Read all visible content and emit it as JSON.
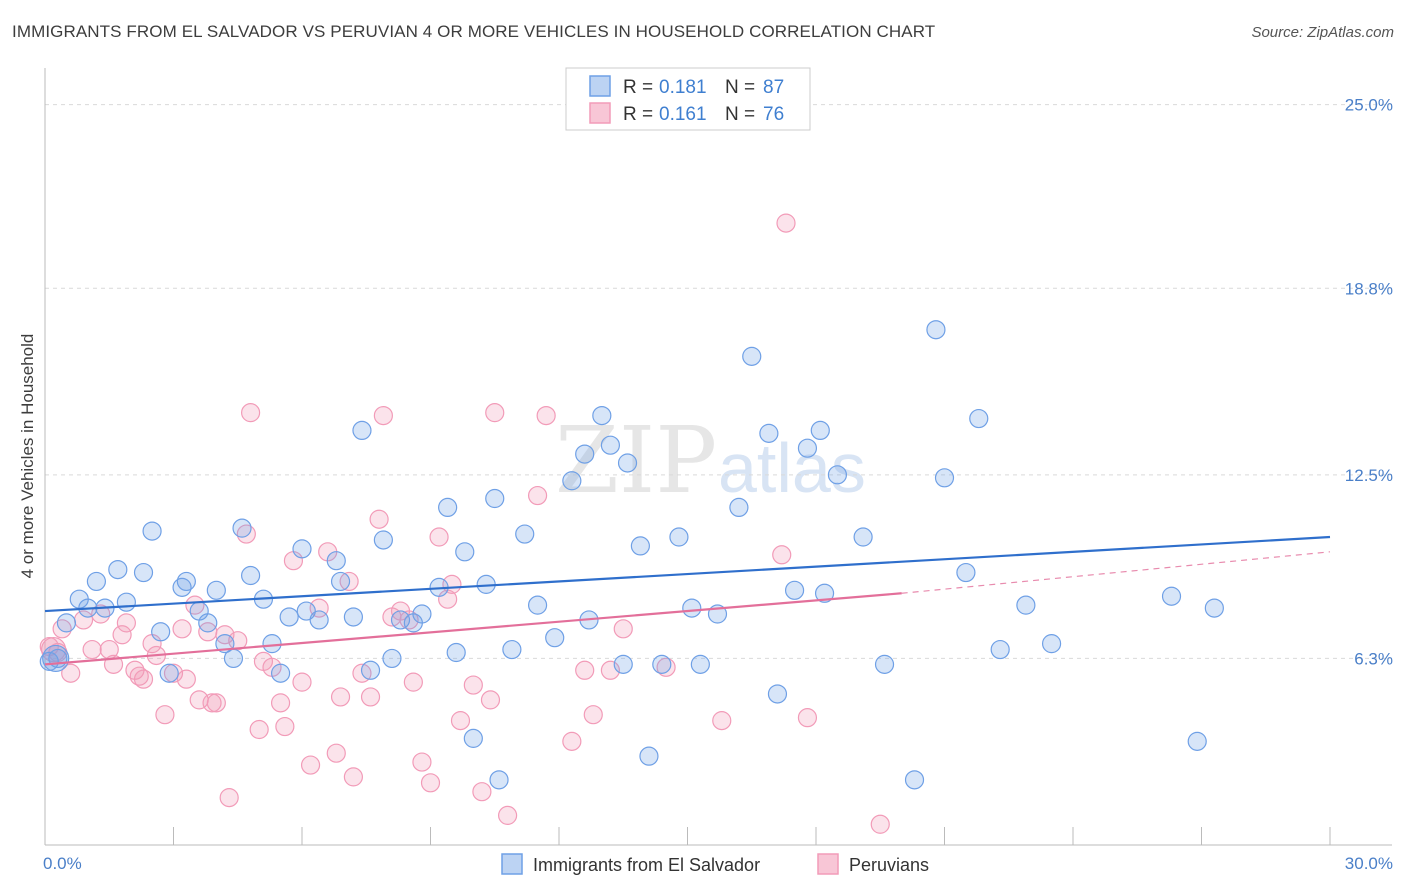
{
  "header": {
    "title": "IMMIGRANTS FROM EL SALVADOR VS PERUVIAN 4 OR MORE VEHICLES IN HOUSEHOLD CORRELATION CHART",
    "source": "Source: ZipAtlas.com"
  },
  "watermark": {
    "zip": "ZIP",
    "atlas": "atlas"
  },
  "legend_top": {
    "rows": [
      {
        "r_label": "R =",
        "r_value": "0.181",
        "n_label": "N =",
        "n_value": "87"
      },
      {
        "r_label": "R =",
        "r_value": "0.161",
        "n_label": "N =",
        "n_value": "76"
      }
    ]
  },
  "chart_data": {
    "type": "scatter",
    "title": "IMMIGRANTS FROM EL SALVADOR VS PERUVIAN 4 OR MORE VEHICLES IN HOUSEHOLD CORRELATION CHART",
    "ylabel": "4 or more Vehicles in Household",
    "xlabel": "",
    "xlim": [
      0,
      30
    ],
    "ylim": [
      0,
      25
    ],
    "x_tick_labels": [
      "0.0%",
      "30.0%"
    ],
    "y_ticks": [
      6.3,
      12.5,
      18.8,
      25.0
    ],
    "y_tick_labels": [
      "6.3%",
      "12.5%",
      "18.8%",
      "25.0%"
    ],
    "grid": true,
    "legend_position": "bottom",
    "colors": {
      "el_salvador": "#6fa0e6",
      "peruvians": "#f29bb8",
      "el_salvador_line": "#2f6fcc",
      "peruvians_line": "#e36f9a"
    },
    "series": [
      {
        "name": "Immigrants from El Salvador",
        "r": 0.181,
        "n": 87,
        "trend": {
          "x0": 0,
          "y0": 7.9,
          "x1": 30,
          "y1": 10.4
        },
        "points": [
          [
            0.1,
            6.2
          ],
          [
            0.3,
            6.3
          ],
          [
            0.5,
            7.5
          ],
          [
            0.8,
            8.3
          ],
          [
            1.0,
            8.0
          ],
          [
            1.2,
            8.9
          ],
          [
            1.4,
            8.0
          ],
          [
            1.7,
            9.3
          ],
          [
            1.9,
            8.2
          ],
          [
            2.3,
            9.2
          ],
          [
            2.5,
            10.6
          ],
          [
            2.7,
            7.2
          ],
          [
            2.9,
            5.8
          ],
          [
            3.2,
            8.7
          ],
          [
            3.3,
            8.9
          ],
          [
            3.6,
            7.9
          ],
          [
            3.8,
            7.5
          ],
          [
            4.0,
            8.6
          ],
          [
            4.2,
            6.8
          ],
          [
            4.4,
            6.3
          ],
          [
            4.6,
            10.7
          ],
          [
            4.8,
            9.1
          ],
          [
            5.1,
            8.3
          ],
          [
            5.3,
            6.8
          ],
          [
            5.5,
            5.8
          ],
          [
            5.7,
            7.7
          ],
          [
            6.0,
            10.0
          ],
          [
            6.1,
            7.9
          ],
          [
            6.4,
            7.6
          ],
          [
            6.8,
            9.6
          ],
          [
            6.9,
            8.9
          ],
          [
            7.2,
            7.7
          ],
          [
            7.4,
            14.0
          ],
          [
            7.6,
            5.9
          ],
          [
            7.9,
            10.3
          ],
          [
            8.1,
            6.3
          ],
          [
            8.3,
            7.6
          ],
          [
            8.6,
            7.5
          ],
          [
            8.8,
            7.8
          ],
          [
            9.2,
            8.7
          ],
          [
            9.4,
            11.4
          ],
          [
            9.6,
            6.5
          ],
          [
            9.8,
            9.9
          ],
          [
            10.0,
            3.6
          ],
          [
            10.3,
            8.8
          ],
          [
            10.5,
            11.7
          ],
          [
            10.6,
            2.2
          ],
          [
            10.9,
            6.6
          ],
          [
            11.2,
            10.5
          ],
          [
            11.5,
            8.1
          ],
          [
            11.9,
            7.0
          ],
          [
            12.3,
            12.3
          ],
          [
            12.6,
            13.2
          ],
          [
            12.7,
            7.6
          ],
          [
            13.0,
            14.5
          ],
          [
            13.2,
            13.5
          ],
          [
            13.5,
            6.1
          ],
          [
            13.6,
            12.9
          ],
          [
            13.9,
            10.1
          ],
          [
            14.1,
            3.0
          ],
          [
            14.4,
            6.1
          ],
          [
            14.8,
            10.4
          ],
          [
            15.1,
            8.0
          ],
          [
            15.3,
            6.1
          ],
          [
            15.7,
            7.8
          ],
          [
            16.2,
            11.4
          ],
          [
            16.5,
            16.5
          ],
          [
            16.9,
            13.9
          ],
          [
            17.1,
            5.1
          ],
          [
            17.5,
            8.6
          ],
          [
            17.8,
            13.4
          ],
          [
            18.1,
            14.0
          ],
          [
            18.2,
            8.5
          ],
          [
            18.5,
            12.5
          ],
          [
            19.1,
            10.4
          ],
          [
            19.6,
            6.1
          ],
          [
            20.3,
            2.2
          ],
          [
            20.8,
            17.4
          ],
          [
            21.0,
            12.4
          ],
          [
            21.5,
            9.2
          ],
          [
            21.8,
            14.4
          ],
          [
            22.3,
            6.6
          ],
          [
            22.9,
            8.1
          ],
          [
            23.5,
            6.8
          ],
          [
            26.3,
            8.4
          ],
          [
            26.9,
            3.5
          ],
          [
            27.3,
            8.0
          ]
        ]
      },
      {
        "name": "Peruvians",
        "r": 0.161,
        "n": 76,
        "trend": {
          "x0": 0,
          "y0": 6.1,
          "x1": 20.0,
          "y1": 8.5
        },
        "trend_dashed": {
          "x0": 20.0,
          "y0": 8.5,
          "x1": 30,
          "y1": 9.9
        },
        "points": [
          [
            0.1,
            6.7
          ],
          [
            0.3,
            6.5
          ],
          [
            0.4,
            7.3
          ],
          [
            0.6,
            5.8
          ],
          [
            0.9,
            7.6
          ],
          [
            1.1,
            6.6
          ],
          [
            1.3,
            7.8
          ],
          [
            1.5,
            6.6
          ],
          [
            1.6,
            6.1
          ],
          [
            1.8,
            7.1
          ],
          [
            1.9,
            7.5
          ],
          [
            2.1,
            5.9
          ],
          [
            2.2,
            5.7
          ],
          [
            2.3,
            5.6
          ],
          [
            2.5,
            6.8
          ],
          [
            2.6,
            6.4
          ],
          [
            2.8,
            4.4
          ],
          [
            3.0,
            5.8
          ],
          [
            3.2,
            7.3
          ],
          [
            3.3,
            5.6
          ],
          [
            3.5,
            8.1
          ],
          [
            3.6,
            4.9
          ],
          [
            3.8,
            7.2
          ],
          [
            3.9,
            4.8
          ],
          [
            4.0,
            4.8
          ],
          [
            4.2,
            7.1
          ],
          [
            4.3,
            1.6
          ],
          [
            4.5,
            6.9
          ],
          [
            4.7,
            10.5
          ],
          [
            4.8,
            14.6
          ],
          [
            5.0,
            3.9
          ],
          [
            5.1,
            6.2
          ],
          [
            5.3,
            6.0
          ],
          [
            5.5,
            4.8
          ],
          [
            5.6,
            4.0
          ],
          [
            5.8,
            9.6
          ],
          [
            6.0,
            5.5
          ],
          [
            6.2,
            2.7
          ],
          [
            6.4,
            8.0
          ],
          [
            6.6,
            9.9
          ],
          [
            6.8,
            3.1
          ],
          [
            6.9,
            5.0
          ],
          [
            7.1,
            8.9
          ],
          [
            7.2,
            2.3
          ],
          [
            7.4,
            5.8
          ],
          [
            7.6,
            5.0
          ],
          [
            7.8,
            11.0
          ],
          [
            7.9,
            14.5
          ],
          [
            8.1,
            7.7
          ],
          [
            8.3,
            7.9
          ],
          [
            8.5,
            7.6
          ],
          [
            8.6,
            5.5
          ],
          [
            8.8,
            2.8
          ],
          [
            9.0,
            2.1
          ],
          [
            9.2,
            10.4
          ],
          [
            9.4,
            8.3
          ],
          [
            9.5,
            8.8
          ],
          [
            9.7,
            4.2
          ],
          [
            10.0,
            5.4
          ],
          [
            10.2,
            1.8
          ],
          [
            10.4,
            4.9
          ],
          [
            10.5,
            14.6
          ],
          [
            10.8,
            1.0
          ],
          [
            11.5,
            11.8
          ],
          [
            11.7,
            14.5
          ],
          [
            12.3,
            3.5
          ],
          [
            12.6,
            5.9
          ],
          [
            13.2,
            5.9
          ],
          [
            13.5,
            7.3
          ],
          [
            14.5,
            6.0
          ],
          [
            15.8,
            4.2
          ],
          [
            17.2,
            9.8
          ],
          [
            17.8,
            4.3
          ],
          [
            19.5,
            0.7
          ],
          [
            17.3,
            21.0
          ],
          [
            12.8,
            4.4
          ]
        ]
      }
    ]
  },
  "bottom_legend": {
    "items": [
      {
        "label": "Immigrants from El Salvador"
      },
      {
        "label": "Peruvians"
      }
    ]
  }
}
